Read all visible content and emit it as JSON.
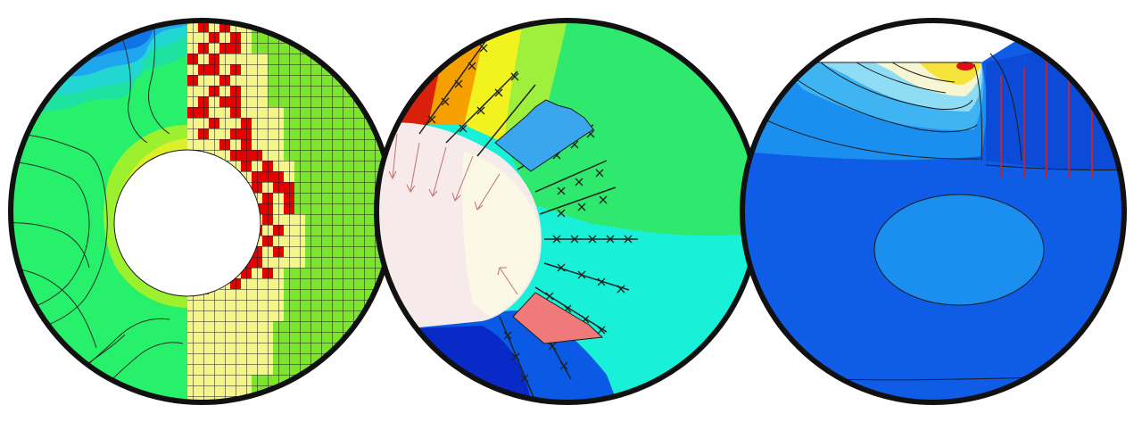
{
  "panels": [
    {
      "id": "tunnel-plastic-zone",
      "colors": {
        "contour_bands": [
          "#0f74e6",
          "#1ea7f0",
          "#22d6d2",
          "#1ee3a0",
          "#27f06a",
          "#5cf03a",
          "#9df02e",
          "#dcf02a",
          "#f4ef2e"
        ],
        "mesh_fill": "#7ce62a",
        "plastic_zone": "#f5f58a",
        "failed_elements": "#e80000",
        "opening": "#ffffff"
      }
    },
    {
      "id": "tunnel-rock-bolts",
      "colors": {
        "field_left_top": "#d9200a",
        "field_orange": "#f6a000",
        "field_yellow": "#f2f21e",
        "field_green": "#2fe86e",
        "field_cyan": "#19f0d8",
        "field_blue": "#0a2ac8",
        "excavation": "#fbf3f3",
        "bolt_line": "#202020",
        "load_blue": "#3aa6ee",
        "load_red": "#f07a7a"
      }
    },
    {
      "id": "slope-stress-contour",
      "colors": {
        "background_blue": "#0f5ce6",
        "mid_blue": "#1a8ff0",
        "light_blue": "#8fdcf5",
        "pale": "#f6f7d2",
        "peak_yellow": "#f5e33a",
        "peak_red": "#e01010",
        "piles": "#b0283c"
      }
    }
  ]
}
